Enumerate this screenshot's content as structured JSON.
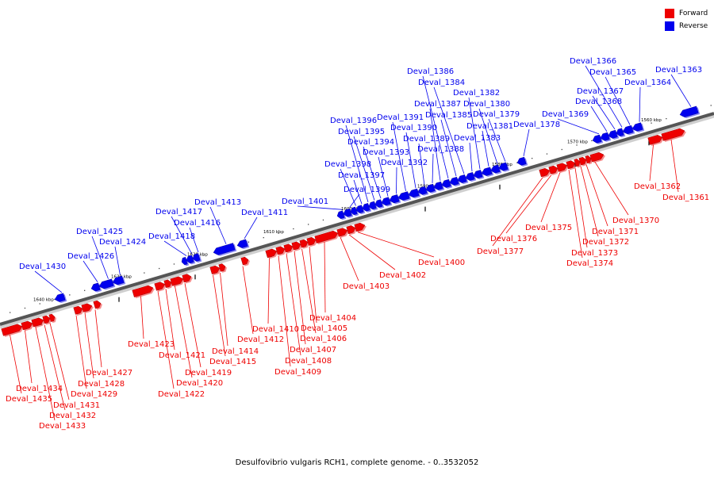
{
  "legend": {
    "forward_label": "Forward",
    "reverse_label": "Reverse",
    "forward_color": "#ee0000",
    "reverse_color": "#0000ee"
  },
  "caption": "Desulfovibrio vulgaris RCH1, complete genome. - 0..3532052",
  "ticks": [
    "1560 kbp",
    "1570 kbp",
    "1580 kbp",
    "1590 kbp",
    "1600 kbp",
    "1610 kbp",
    "1620 kbp",
    "1630 kbp",
    "1640 kbp"
  ],
  "genes": [
    {
      "id": "Deval_1361",
      "strand": "forward"
    },
    {
      "id": "Deval_1362",
      "strand": "forward"
    },
    {
      "id": "Deval_1363",
      "strand": "reverse"
    },
    {
      "id": "Deval_1364",
      "strand": "reverse"
    },
    {
      "id": "Deval_1365",
      "strand": "reverse"
    },
    {
      "id": "Deval_1366",
      "strand": "reverse"
    },
    {
      "id": "Deval_1367",
      "strand": "reverse"
    },
    {
      "id": "Deval_1368",
      "strand": "reverse"
    },
    {
      "id": "Deval_1369",
      "strand": "reverse"
    },
    {
      "id": "Deval_1370",
      "strand": "forward"
    },
    {
      "id": "Deval_1371",
      "strand": "forward"
    },
    {
      "id": "Deval_1372",
      "strand": "forward"
    },
    {
      "id": "Deval_1373",
      "strand": "forward"
    },
    {
      "id": "Deval_1374",
      "strand": "forward"
    },
    {
      "id": "Deval_1375",
      "strand": "forward"
    },
    {
      "id": "Deval_1376",
      "strand": "forward"
    },
    {
      "id": "Deval_1377",
      "strand": "forward"
    },
    {
      "id": "Deval_1378",
      "strand": "reverse"
    },
    {
      "id": "Deval_1379",
      "strand": "reverse"
    },
    {
      "id": "Deval_1380",
      "strand": "reverse"
    },
    {
      "id": "Deval_1381",
      "strand": "reverse"
    },
    {
      "id": "Deval_1382",
      "strand": "reverse"
    },
    {
      "id": "Deval_1383",
      "strand": "reverse"
    },
    {
      "id": "Deval_1384",
      "strand": "reverse"
    },
    {
      "id": "Deval_1385",
      "strand": "reverse"
    },
    {
      "id": "Deval_1386",
      "strand": "reverse"
    },
    {
      "id": "Deval_1387",
      "strand": "reverse"
    },
    {
      "id": "Deval_1388",
      "strand": "reverse"
    },
    {
      "id": "Deval_1389",
      "strand": "reverse"
    },
    {
      "id": "Deval_1390",
      "strand": "reverse"
    },
    {
      "id": "Deval_1391",
      "strand": "reverse"
    },
    {
      "id": "Deval_1392",
      "strand": "reverse"
    },
    {
      "id": "Deval_1393",
      "strand": "reverse"
    },
    {
      "id": "Deval_1394",
      "strand": "reverse"
    },
    {
      "id": "Deval_1395",
      "strand": "reverse"
    },
    {
      "id": "Deval_1396",
      "strand": "reverse"
    },
    {
      "id": "Deval_1397",
      "strand": "reverse"
    },
    {
      "id": "Deval_1398",
      "strand": "reverse"
    },
    {
      "id": "Deval_1399",
      "strand": "reverse"
    },
    {
      "id": "Deval_1400",
      "strand": "forward"
    },
    {
      "id": "Deval_1401",
      "strand": "reverse"
    },
    {
      "id": "Deval_1402",
      "strand": "forward"
    },
    {
      "id": "Deval_1403",
      "strand": "forward"
    },
    {
      "id": "Deval_1404",
      "strand": "forward"
    },
    {
      "id": "Deval_1405",
      "strand": "forward"
    },
    {
      "id": "Deval_1406",
      "strand": "forward"
    },
    {
      "id": "Deval_1407",
      "strand": "forward"
    },
    {
      "id": "Deval_1408",
      "strand": "forward"
    },
    {
      "id": "Deval_1409",
      "strand": "forward"
    },
    {
      "id": "Deval_1410",
      "strand": "forward"
    },
    {
      "id": "Deval_1411",
      "strand": "reverse"
    },
    {
      "id": "Deval_1412",
      "strand": "forward"
    },
    {
      "id": "Deval_1413",
      "strand": "reverse"
    },
    {
      "id": "Deval_1414",
      "strand": "forward"
    },
    {
      "id": "Deval_1415",
      "strand": "forward"
    },
    {
      "id": "Deval_1416",
      "strand": "reverse"
    },
    {
      "id": "Deval_1417",
      "strand": "reverse"
    },
    {
      "id": "Deval_1418",
      "strand": "reverse"
    },
    {
      "id": "Deval_1419",
      "strand": "forward"
    },
    {
      "id": "Deval_1420",
      "strand": "forward"
    },
    {
      "id": "Deval_1421",
      "strand": "forward"
    },
    {
      "id": "Deval_1422",
      "strand": "forward"
    },
    {
      "id": "Deval_1423",
      "strand": "forward"
    },
    {
      "id": "Deval_1424",
      "strand": "reverse"
    },
    {
      "id": "Deval_1425",
      "strand": "reverse"
    },
    {
      "id": "Deval_1426",
      "strand": "reverse"
    },
    {
      "id": "Deval_1427",
      "strand": "forward"
    },
    {
      "id": "Deval_1428",
      "strand": "forward"
    },
    {
      "id": "Deval_1429",
      "strand": "forward"
    },
    {
      "id": "Deval_1430",
      "strand": "reverse"
    },
    {
      "id": "Deval_1431",
      "strand": "forward"
    },
    {
      "id": "Deval_1432",
      "strand": "forward"
    },
    {
      "id": "Deval_1433",
      "strand": "forward"
    },
    {
      "id": "Deval_1434",
      "strand": "forward"
    },
    {
      "id": "Deval_1435",
      "strand": "forward"
    }
  ]
}
